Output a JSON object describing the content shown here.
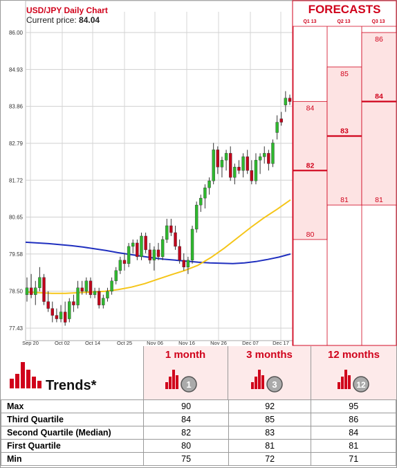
{
  "header": {
    "title": "USD/JPY Daily Chart",
    "price_label": "Current price: ",
    "price_value": "84.04"
  },
  "forecasts": {
    "title": "FORECASTS",
    "columns": [
      "Q1 13",
      "Q2 13",
      "Q3 13"
    ]
  },
  "colors": {
    "up": "#2eb82e",
    "down": "#c0001b",
    "red": "#d0021b",
    "ma_short": "#f5c518",
    "ma_long": "#1f2fbf",
    "band": "#fde3e3"
  },
  "chart_data": {
    "type": "line",
    "title": "USD/JPY Daily Chart",
    "ylim": [
      77.43,
      86.0
    ],
    "y_ticks": [
      "86.00",
      "84.93",
      "83.86",
      "82.79",
      "81.72",
      "80.65",
      "79.58",
      "78.50",
      "77.43"
    ],
    "x_ticks": [
      "Sep 20",
      "Oct 02",
      "Oct 14",
      "Oct 25",
      "Nov 06",
      "Nov 16",
      "Nov 26",
      "Dec 07",
      "Dec 17"
    ],
    "candles": [
      {
        "o": 78.4,
        "h": 78.9,
        "l": 78.2,
        "c": 78.6
      },
      {
        "o": 78.6,
        "h": 79.0,
        "l": 78.3,
        "c": 78.4
      },
      {
        "o": 78.4,
        "h": 78.8,
        "l": 78.1,
        "c": 78.6
      },
      {
        "o": 78.6,
        "h": 79.2,
        "l": 78.5,
        "c": 78.9
      },
      {
        "o": 78.9,
        "h": 79.0,
        "l": 78.1,
        "c": 78.2
      },
      {
        "o": 78.2,
        "h": 78.5,
        "l": 77.9,
        "c": 78.0
      },
      {
        "o": 78.0,
        "h": 78.2,
        "l": 77.6,
        "c": 77.8
      },
      {
        "o": 77.8,
        "h": 78.0,
        "l": 77.6,
        "c": 77.7
      },
      {
        "o": 77.7,
        "h": 78.1,
        "l": 77.6,
        "c": 77.9
      },
      {
        "o": 77.9,
        "h": 78.2,
        "l": 77.5,
        "c": 77.6
      },
      {
        "o": 77.7,
        "h": 78.3,
        "l": 77.6,
        "c": 78.2
      },
      {
        "o": 78.2,
        "h": 78.4,
        "l": 77.9,
        "c": 78.1
      },
      {
        "o": 78.1,
        "h": 78.8,
        "l": 78.0,
        "c": 78.6
      },
      {
        "o": 78.6,
        "h": 78.8,
        "l": 78.4,
        "c": 78.5
      },
      {
        "o": 78.5,
        "h": 78.9,
        "l": 78.4,
        "c": 78.8
      },
      {
        "o": 78.8,
        "h": 78.9,
        "l": 78.3,
        "c": 78.4
      },
      {
        "o": 78.4,
        "h": 78.6,
        "l": 78.3,
        "c": 78.5
      },
      {
        "o": 78.5,
        "h": 78.6,
        "l": 78.0,
        "c": 78.1
      },
      {
        "o": 78.1,
        "h": 78.4,
        "l": 78.0,
        "c": 78.3
      },
      {
        "o": 78.3,
        "h": 78.6,
        "l": 78.2,
        "c": 78.5
      },
      {
        "o": 78.5,
        "h": 78.9,
        "l": 78.4,
        "c": 78.8
      },
      {
        "o": 78.8,
        "h": 79.2,
        "l": 78.7,
        "c": 79.1
      },
      {
        "o": 79.1,
        "h": 79.5,
        "l": 79.0,
        "c": 79.4
      },
      {
        "o": 79.4,
        "h": 79.6,
        "l": 79.1,
        "c": 79.3
      },
      {
        "o": 79.3,
        "h": 79.9,
        "l": 79.2,
        "c": 79.8
      },
      {
        "o": 79.8,
        "h": 80.0,
        "l": 79.6,
        "c": 79.9
      },
      {
        "o": 79.9,
        "h": 80.0,
        "l": 79.4,
        "c": 79.5
      },
      {
        "o": 79.5,
        "h": 80.2,
        "l": 79.4,
        "c": 80.1
      },
      {
        "o": 80.1,
        "h": 80.2,
        "l": 79.6,
        "c": 79.7
      },
      {
        "o": 79.7,
        "h": 79.9,
        "l": 79.3,
        "c": 79.4
      },
      {
        "o": 79.4,
        "h": 79.8,
        "l": 79.1,
        "c": 79.7
      },
      {
        "o": 79.7,
        "h": 79.9,
        "l": 79.4,
        "c": 79.5
      },
      {
        "o": 79.5,
        "h": 80.1,
        "l": 79.4,
        "c": 80.0
      },
      {
        "o": 80.0,
        "h": 80.6,
        "l": 79.9,
        "c": 80.4
      },
      {
        "o": 80.4,
        "h": 80.6,
        "l": 80.1,
        "c": 80.2
      },
      {
        "o": 80.2,
        "h": 80.4,
        "l": 79.7,
        "c": 79.8
      },
      {
        "o": 79.8,
        "h": 80.0,
        "l": 79.3,
        "c": 79.4
      },
      {
        "o": 79.4,
        "h": 79.6,
        "l": 79.1,
        "c": 79.2
      },
      {
        "o": 79.2,
        "h": 79.5,
        "l": 79.0,
        "c": 79.4
      },
      {
        "o": 79.4,
        "h": 80.4,
        "l": 79.3,
        "c": 80.3
      },
      {
        "o": 80.3,
        "h": 81.1,
        "l": 80.2,
        "c": 81.0
      },
      {
        "o": 81.0,
        "h": 81.3,
        "l": 80.8,
        "c": 81.2
      },
      {
        "o": 81.2,
        "h": 81.6,
        "l": 80.9,
        "c": 81.5
      },
      {
        "o": 81.5,
        "h": 81.8,
        "l": 81.3,
        "c": 81.7
      },
      {
        "o": 81.7,
        "h": 82.8,
        "l": 81.6,
        "c": 82.6
      },
      {
        "o": 82.6,
        "h": 82.7,
        "l": 81.9,
        "c": 82.1
      },
      {
        "o": 82.1,
        "h": 82.4,
        "l": 81.8,
        "c": 82.3
      },
      {
        "o": 82.3,
        "h": 82.6,
        "l": 82.0,
        "c": 82.5
      },
      {
        "o": 82.5,
        "h": 82.7,
        "l": 81.7,
        "c": 81.8
      },
      {
        "o": 81.8,
        "h": 82.2,
        "l": 81.6,
        "c": 82.1
      },
      {
        "o": 82.1,
        "h": 82.3,
        "l": 81.9,
        "c": 82.0
      },
      {
        "o": 82.0,
        "h": 82.5,
        "l": 81.8,
        "c": 82.4
      },
      {
        "o": 82.4,
        "h": 82.6,
        "l": 81.9,
        "c": 82.0
      },
      {
        "o": 82.0,
        "h": 82.3,
        "l": 81.6,
        "c": 81.7
      },
      {
        "o": 81.7,
        "h": 82.5,
        "l": 81.6,
        "c": 82.3
      },
      {
        "o": 82.3,
        "h": 82.5,
        "l": 81.9,
        "c": 82.4
      },
      {
        "o": 82.4,
        "h": 82.7,
        "l": 82.2,
        "c": 82.5
      },
      {
        "o": 82.5,
        "h": 82.6,
        "l": 82.0,
        "c": 82.2
      },
      {
        "o": 82.2,
        "h": 82.9,
        "l": 82.1,
        "c": 82.8
      },
      {
        "o": 83.1,
        "h": 83.6,
        "l": 82.9,
        "c": 83.4
      },
      {
        "o": 83.5,
        "h": 83.7,
        "l": 83.3,
        "c": 83.4
      },
      {
        "o": 83.9,
        "h": 84.3,
        "l": 83.7,
        "c": 84.1
      },
      {
        "o": 84.1,
        "h": 84.2,
        "l": 83.9,
        "c": 84.0
      }
    ],
    "series": [
      {
        "name": "",
        "values": [
          79.92,
          79.9,
          79.88,
          79.85,
          79.82,
          79.78,
          79.73,
          79.68,
          79.62,
          79.57,
          79.52,
          79.47,
          79.43,
          79.4,
          79.37,
          79.34,
          79.32,
          79.31,
          79.3,
          79.32,
          79.36,
          79.42,
          79.49,
          79.58
        ]
      },
      {
        "name": "",
        "values": [
          78.48,
          78.46,
          78.44,
          78.44,
          78.46,
          78.48,
          78.5,
          78.55,
          78.62,
          78.72,
          78.85,
          78.98,
          79.1,
          79.25,
          79.48,
          79.75,
          80.05,
          80.35,
          80.63,
          80.88,
          81.15
        ]
      }
    ],
    "forecast_bands": [
      {
        "label": "Q1 13",
        "min": 80,
        "q1": 80,
        "median": 82,
        "q3": 84,
        "max": 84
      },
      {
        "label": "Q2 13",
        "min": 81,
        "q1": 81,
        "median": 83,
        "q3": 85,
        "max": 85
      },
      {
        "label": "Q3 13",
        "min": 81,
        "q1": 81,
        "median": 84,
        "q3": 86,
        "max": 86
      }
    ]
  },
  "table": {
    "trends_label": "Trends*",
    "headers": [
      "1 month",
      "3 months",
      "12 months"
    ],
    "badges": [
      "1",
      "3",
      "12"
    ],
    "rows": [
      {
        "label": "Max",
        "values": [
          "90",
          "92",
          "95"
        ]
      },
      {
        "label": "Third Quartile",
        "values": [
          "84",
          "85",
          "86"
        ]
      },
      {
        "label": "Second Quartile (Median)",
        "values": [
          "82",
          "83",
          "84"
        ]
      },
      {
        "label": "First Quartile",
        "values": [
          "80",
          "81",
          "81"
        ]
      },
      {
        "label": "Min",
        "values": [
          "75",
          "72",
          "71"
        ]
      }
    ]
  }
}
